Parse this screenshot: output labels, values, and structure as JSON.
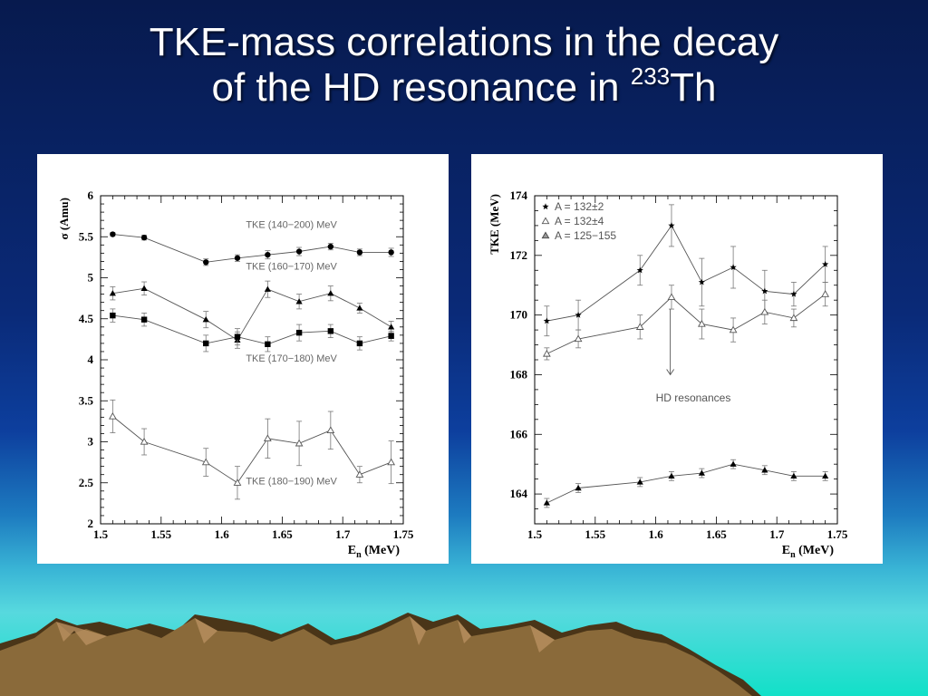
{
  "slide": {
    "title_line1": "TKE-mass correlations in the decay",
    "title_line2_prefix": "of the HD resonance in ",
    "title_superscript": "233",
    "title_suffix": "Th"
  },
  "chart_data": [
    {
      "type": "line",
      "ylabel": "σ (Amu)",
      "xlabel_main": "E",
      "xlabel_sub": "n",
      "xlabel_unit": " (MeV)",
      "xlim": [
        1.5,
        1.75
      ],
      "ylim": [
        2,
        6
      ],
      "xticks": [
        "1.5",
        "1.55",
        "1.6",
        "1.65",
        "1.7",
        "1.75"
      ],
      "yticks": [
        "2",
        "2.5",
        "3",
        "3.5",
        "4",
        "4.5",
        "5",
        "5.5",
        "6"
      ],
      "series": [
        {
          "name": "TKE (140−200) MeV",
          "marker": "circle",
          "x": [
            1.51,
            1.536,
            1.587,
            1.613,
            1.638,
            1.664,
            1.69,
            1.714,
            1.74
          ],
          "y": [
            5.53,
            5.49,
            5.19,
            5.24,
            5.28,
            5.32,
            5.38,
            5.31,
            5.31
          ],
          "err": [
            0.02,
            0.03,
            0.04,
            0.04,
            0.05,
            0.05,
            0.04,
            0.04,
            0.05
          ],
          "label_pos": [
            1.62,
            5.61
          ]
        },
        {
          "name": "TKE (160−170) MeV",
          "marker": "triangle",
          "x": [
            1.51,
            1.536,
            1.587,
            1.613,
            1.638,
            1.664,
            1.69,
            1.714,
            1.74
          ],
          "y": [
            4.81,
            4.87,
            4.49,
            4.24,
            4.86,
            4.71,
            4.81,
            4.63,
            4.4
          ],
          "err": [
            0.08,
            0.08,
            0.1,
            0.1,
            0.1,
            0.09,
            0.09,
            0.06,
            0.07
          ],
          "label_pos": [
            1.62,
            5.1
          ]
        },
        {
          "name": "TKE (170−180) MeV",
          "marker": "square",
          "x": [
            1.51,
            1.536,
            1.587,
            1.613,
            1.638,
            1.664,
            1.69,
            1.714,
            1.74
          ],
          "y": [
            4.54,
            4.49,
            4.2,
            4.28,
            4.19,
            4.33,
            4.35,
            4.2,
            4.29
          ],
          "err": [
            0.08,
            0.08,
            0.1,
            0.1,
            0.09,
            0.1,
            0.08,
            0.08,
            0.06
          ],
          "label_pos": [
            1.62,
            3.98
          ]
        },
        {
          "name": "TKE (180−190) MeV",
          "marker": "open-triangle",
          "x": [
            1.51,
            1.536,
            1.587,
            1.613,
            1.638,
            1.664,
            1.69,
            1.714,
            1.74
          ],
          "y": [
            3.31,
            3.0,
            2.75,
            2.5,
            3.04,
            2.98,
            3.14,
            2.6,
            2.75
          ],
          "err": [
            0.2,
            0.16,
            0.17,
            0.2,
            0.24,
            0.27,
            0.23,
            0.1,
            0.26
          ],
          "label_pos": [
            1.62,
            2.48
          ]
        }
      ]
    },
    {
      "type": "line",
      "ylabel": "TKE (MeV)",
      "xlabel_main": "E",
      "xlabel_sub": "n",
      "xlabel_unit": " (MeV)",
      "xlim": [
        1.5,
        1.75
      ],
      "ylim": [
        163,
        174
      ],
      "xticks": [
        "1.5",
        "1.55",
        "1.6",
        "1.65",
        "1.7",
        "1.75"
      ],
      "yticks": [
        "164",
        "166",
        "168",
        "170",
        "172",
        "174"
      ],
      "legend": [
        {
          "marker": "star",
          "label": "A = 132±2"
        },
        {
          "marker": "open-triangle",
          "label": "A = 132±4"
        },
        {
          "marker": "hatched-triangle",
          "label": "A = 125−155"
        }
      ],
      "annotation": "HD resonances",
      "arrow_x": 1.612,
      "arrow_from": 170.2,
      "arrow_to": 168.0,
      "annotation_pos": [
        1.612,
        167.1
      ],
      "series": [
        {
          "marker": "star",
          "x": [
            1.51,
            1.536,
            1.587,
            1.613,
            1.638,
            1.664,
            1.69,
            1.714,
            1.74
          ],
          "y": [
            169.8,
            170.0,
            171.5,
            173.0,
            171.1,
            171.6,
            170.8,
            170.7,
            171.7
          ],
          "err": [
            0.5,
            0.5,
            0.5,
            0.7,
            0.8,
            0.7,
            0.7,
            0.4,
            0.6
          ]
        },
        {
          "marker": "open-triangle",
          "x": [
            1.51,
            1.536,
            1.587,
            1.613,
            1.638,
            1.664,
            1.69,
            1.714,
            1.74
          ],
          "y": [
            168.7,
            169.2,
            169.6,
            170.6,
            169.7,
            169.5,
            170.1,
            169.9,
            170.7
          ],
          "err": [
            0.2,
            0.3,
            0.4,
            0.4,
            0.5,
            0.4,
            0.4,
            0.3,
            0.4
          ]
        },
        {
          "marker": "filled-triangle",
          "x": [
            1.51,
            1.536,
            1.587,
            1.613,
            1.638,
            1.664,
            1.69,
            1.714,
            1.74
          ],
          "y": [
            163.7,
            164.2,
            164.4,
            164.6,
            164.7,
            165.0,
            164.8,
            164.6,
            164.6
          ],
          "err": [
            0.15,
            0.15,
            0.15,
            0.15,
            0.15,
            0.15,
            0.15,
            0.15,
            0.15
          ]
        }
      ]
    }
  ]
}
